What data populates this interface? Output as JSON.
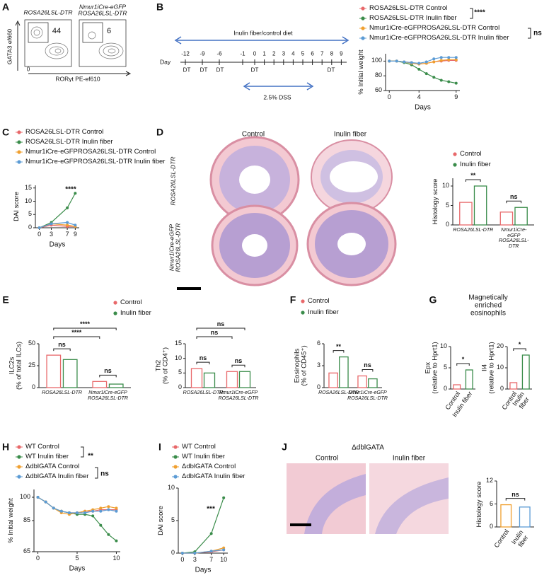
{
  "panels": {
    "letters": [
      "A",
      "B",
      "C",
      "D",
      "E",
      "F",
      "G",
      "H",
      "I",
      "J"
    ],
    "A": {
      "plots": [
        {
          "title": "ROSA26LSL-DTR",
          "gate": "44"
        },
        {
          "title": "Nmur1iCre-eGFP\nROSA26LSL-DTR",
          "gate": "6"
        }
      ],
      "ylabel": "GATA3 ef660",
      "xlabel": "RORγt PE-ef610",
      "zero": "0"
    },
    "B": {
      "diet": "Inulin fiber/control diet",
      "dss": "2.5% DSS",
      "day_label": "Day",
      "days": [
        "-12",
        "-9",
        "-6",
        "-1",
        "0",
        "1",
        "2",
        "3",
        "4",
        "5",
        "6",
        "7",
        "8",
        "9"
      ],
      "dt": [
        "DT",
        "DT",
        "DT",
        "DT",
        "DT"
      ]
    },
    "D": {
      "columns": [
        "Control",
        "Inulin fiber"
      ],
      "rows": [
        "ROSA26LSL-DTR",
        "Nmur1iCre-eGFP\nROSA26LSL-DTR"
      ]
    },
    "G": {
      "title": "Magnetically enriched\neosinophils"
    },
    "J": {
      "title": "ΔdblGATA",
      "columns": [
        "Control",
        "Inulin fiber"
      ]
    }
  },
  "chart_data": [
    {
      "type": "line",
      "ylabel": "% Initial weight",
      "xlabel": "Days",
      "x": [
        0,
        1,
        2,
        3,
        4,
        5,
        6,
        7,
        8,
        9
      ],
      "xlim": [
        -0.5,
        9.5
      ],
      "xticks": [
        0,
        4,
        9
      ],
      "ylim": [
        60,
        110
      ],
      "yticks": [
        60,
        80,
        100
      ],
      "series": [
        {
          "name": "ROSA26LSL-DTR Control",
          "color": "#e8686a",
          "values": [
            100,
            100,
            99,
            98,
            96,
            97,
            99,
            100,
            101,
            101
          ]
        },
        {
          "name": "ROSA26LSL-DTR Inulin fiber",
          "color": "#3a8c4a",
          "values": [
            100,
            100,
            98,
            95,
            89,
            83,
            78,
            74,
            72,
            70
          ]
        },
        {
          "name": "Nmur1iCre-eGFPROSA26LSL-DTR Control",
          "color": "#f0a030",
          "values": [
            100,
            100,
            99,
            97,
            96,
            97,
            99,
            101,
            102,
            102
          ]
        },
        {
          "name": "Nmur1iCre-eGFPROSA26LSL-DTR Inulin fiber",
          "color": "#5b9bd5",
          "values": [
            100,
            100,
            99,
            98,
            97,
            99,
            103,
            105,
            105,
            105
          ]
        }
      ],
      "annotations": [
        "****",
        "ns"
      ]
    },
    {
      "type": "line",
      "ylabel": "DAI score",
      "xlabel": "Days",
      "x": [
        0,
        3,
        7,
        9
      ],
      "xlim": [
        -1,
        10
      ],
      "xticks": [
        0,
        3,
        7,
        9
      ],
      "ylim": [
        0,
        16
      ],
      "yticks": [
        0,
        5,
        10,
        15
      ],
      "series": [
        {
          "name": "ROSA26LSL-DTR Control",
          "color": "#e8686a",
          "values": [
            0,
            1,
            0.5,
            0.5
          ]
        },
        {
          "name": "ROSA26LSL-DTR Inulin fiber",
          "color": "#3a8c4a",
          "values": [
            0,
            2,
            7.5,
            13
          ]
        },
        {
          "name": "Nmur1iCre-eGFPROSA26LSL-DTR Control",
          "color": "#f0a030",
          "values": [
            0,
            1.5,
            1,
            0.5
          ]
        },
        {
          "name": "Nmur1iCre-eGFPROSA26LSL-DTR Inulin fiber",
          "color": "#5b9bd5",
          "values": [
            0,
            1.5,
            2,
            1
          ]
        }
      ],
      "annotations": [
        "****"
      ]
    },
    {
      "type": "bar",
      "ylabel": "Histology score",
      "categories": [
        "ROSA26LSL-DTR",
        "Nmur1iCre-eGFP\nROSA26LSL-DTR"
      ],
      "ylim": [
        0,
        12
      ],
      "yticks": [
        0,
        5,
        10
      ],
      "series": [
        {
          "name": "Control",
          "color": "#e8686a",
          "values": [
            5.8,
            3.3
          ]
        },
        {
          "name": "Inulin fiber",
          "color": "#3a8c4a",
          "values": [
            10,
            4.5
          ]
        }
      ],
      "annotations": [
        "**",
        "ns"
      ]
    },
    {
      "type": "bar",
      "ylabel": "ILC2s\n(% of total ILCs)",
      "categories": [
        "ROSA26LSL-DTR",
        "Nmur1iCre-eGFP\nROSA26LSL-DTR"
      ],
      "ylim": [
        0,
        50
      ],
      "yticks": [
        0,
        25,
        50
      ],
      "series": [
        {
          "name": "Control",
          "color": "#e8686a",
          "values": [
            37,
            7
          ]
        },
        {
          "name": "Inulin fiber",
          "color": "#3a8c4a",
          "values": [
            32,
            4
          ]
        }
      ],
      "annotations": [
        "ns",
        "ns",
        "****",
        "****"
      ]
    },
    {
      "type": "bar",
      "ylabel": "Th2\n(% of CD4⁺)",
      "categories": [
        "ROSA26LSL-DTR",
        "Nmur1iCre-eGFP\nROSA26LSL-DTR"
      ],
      "ylim": [
        0,
        15
      ],
      "yticks": [
        0,
        5,
        10,
        15
      ],
      "series": [
        {
          "color": "#e8686a",
          "values": [
            6.5,
            5.5
          ]
        },
        {
          "color": "#3a8c4a",
          "values": [
            5,
            5.5
          ]
        }
      ],
      "annotations": [
        "ns",
        "ns",
        "ns",
        "ns"
      ]
    },
    {
      "type": "bar",
      "ylabel": "Eosinophils\n(% of CD45⁺)",
      "categories": [
        "ROSA26LSL-DTR",
        "Nmur1iCre-eGFP\nROSA26LSL-DTR"
      ],
      "ylim": [
        0,
        6
      ],
      "yticks": [
        0,
        3,
        6
      ],
      "series": [
        {
          "name": "Control",
          "color": "#e8686a",
          "values": [
            2,
            1.6
          ]
        },
        {
          "name": "Inulin fiber",
          "color": "#3a8c4a",
          "values": [
            4.2,
            1.2
          ]
        }
      ],
      "annotations": [
        "**",
        "ns"
      ]
    },
    {
      "type": "bar",
      "ylabel": "Epx\n(relative to  Hprt1)",
      "categories": [
        "Control",
        "Inulin fiber"
      ],
      "values": [
        1,
        4.5
      ],
      "colors": [
        "#e8686a",
        "#3a8c4a"
      ],
      "ylim": [
        0,
        10
      ],
      "yticks": [
        0,
        5,
        10
      ],
      "annotations": [
        "*"
      ]
    },
    {
      "type": "bar",
      "ylabel": "Il4\n(relative to  Hprt1)",
      "categories": [
        "Control",
        "Inulin fiber"
      ],
      "values": [
        3,
        16
      ],
      "colors": [
        "#e8686a",
        "#3a8c4a"
      ],
      "ylim": [
        0,
        20
      ],
      "yticks": [
        0,
        10,
        20
      ],
      "annotations": [
        "*"
      ]
    },
    {
      "type": "line",
      "ylabel": "% Initial weight",
      "xlabel": "Days",
      "x": [
        0,
        1,
        2,
        3,
        4,
        5,
        6,
        7,
        8,
        9,
        10
      ],
      "xlim": [
        -0.5,
        10.5
      ],
      "xticks": [
        0,
        5,
        10
      ],
      "ylim": [
        65,
        105
      ],
      "yticks": [
        65,
        85,
        100
      ],
      "series": [
        {
          "name": "WT Control",
          "color": "#e8686a",
          "values": [
            100,
            97,
            93,
            91,
            90,
            90,
            91,
            91,
            92,
            92,
            92
          ]
        },
        {
          "name": "WT Inulin fiber",
          "color": "#3a8c4a",
          "values": [
            100,
            97,
            93,
            91,
            90,
            89,
            89,
            88,
            82,
            76,
            72
          ]
        },
        {
          "name": "ΔdblGATA Control",
          "color": "#f0a030",
          "values": [
            100,
            97,
            93,
            90,
            89,
            90,
            91,
            92,
            93,
            94,
            93
          ]
        },
        {
          "name": "ΔdblGATA Inulin fiber",
          "color": "#5b9bd5",
          "values": [
            100,
            97,
            93,
            91,
            90,
            90,
            90,
            91,
            91,
            92,
            91
          ]
        }
      ],
      "annotations": [
        "**",
        "ns"
      ]
    },
    {
      "type": "line",
      "ylabel": "DAI score",
      "xlabel": "Days",
      "x": [
        0,
        3,
        7,
        10
      ],
      "xlim": [
        -1,
        11
      ],
      "xticks": [
        0,
        3,
        7,
        10
      ],
      "ylim": [
        0,
        10
      ],
      "yticks": [
        0,
        5,
        10
      ],
      "series": [
        {
          "name": "WT Control",
          "color": "#e8686a",
          "values": [
            0,
            0,
            0.2,
            0.5
          ]
        },
        {
          "name": "WT Inulin fiber",
          "color": "#3a8c4a",
          "values": [
            0,
            0.2,
            3,
            8.5
          ]
        },
        {
          "name": "ΔdblGATA Control",
          "color": "#f0a030",
          "values": [
            0,
            0,
            0.3,
            0.8
          ]
        },
        {
          "name": "ΔdblGATA Inulin fiber",
          "color": "#5b9bd5",
          "values": [
            0,
            0,
            0.3,
            0.5
          ]
        }
      ],
      "annotations": [
        "***"
      ]
    },
    {
      "type": "bar",
      "ylabel": "Histology score",
      "categories": [
        "Control",
        "Inulin fiber"
      ],
      "values": [
        5.8,
        5.2
      ],
      "colors": [
        "#f0a030",
        "#5b9bd5"
      ],
      "ylim": [
        0,
        12
      ],
      "yticks": [
        0,
        6,
        12
      ],
      "annotations": [
        "ns"
      ]
    }
  ]
}
